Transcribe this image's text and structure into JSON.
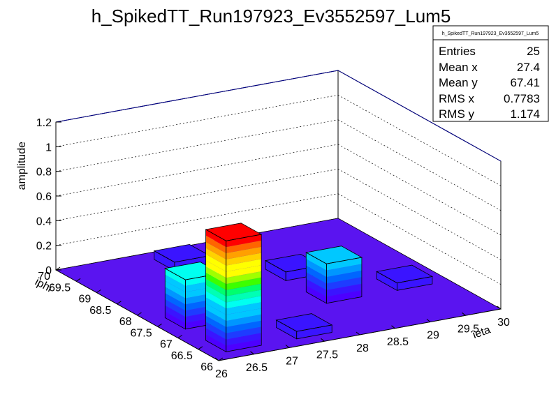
{
  "chart_data": {
    "type": "lego",
    "title": "h_SpikedTT_Run197923_Ev3552597_Lum5",
    "xlabel": "ieta",
    "ylabel": "iphi",
    "zlabel": "amplitude",
    "xlim": [
      26,
      30
    ],
    "ylim": [
      66,
      70
    ],
    "zlim": [
      0,
      1.2
    ],
    "x_ticks": [
      "26",
      "26.5",
      "27",
      "27.5",
      "28",
      "28.5",
      "29",
      "29.5",
      "30"
    ],
    "y_ticks": [
      "66",
      "66.5",
      "67",
      "67.5",
      "68",
      "68.5",
      "69",
      "69.5",
      "70"
    ],
    "z_ticks": [
      "0",
      "0.2",
      "0.4",
      "0.6",
      "0.8",
      "1",
      "1.2"
    ],
    "grid": true,
    "colors": {
      "floor": "#5a14f0",
      "box_frame": "#000000",
      "top_edge": "#00008b"
    },
    "bins": [
      {
        "x": 26.5,
        "y": 67.5,
        "z": 0.4
      },
      {
        "x": 26.5,
        "y": 66.5,
        "z": 0.9
      },
      {
        "x": 27.5,
        "y": 66.5,
        "z": 0.06
      },
      {
        "x": 27.5,
        "y": 69.5,
        "z": 0.07
      },
      {
        "x": 28.5,
        "y": 67.5,
        "z": 0.32
      },
      {
        "x": 28.5,
        "y": 68.5,
        "z": 0.07
      },
      {
        "x": 29.5,
        "y": 67.5,
        "z": 0.06
      }
    ]
  },
  "stats": {
    "title": "h_SpikedTT_Run197923_Ev3552597_Lum5",
    "rows": [
      {
        "label": "Entries",
        "value": "25"
      },
      {
        "label": "Mean x",
        "value": "27.4"
      },
      {
        "label": "Mean y",
        "value": "67.41"
      },
      {
        "label": "RMS x",
        "value": "0.7783"
      },
      {
        "label": "RMS y",
        "value": "1.174"
      }
    ]
  }
}
